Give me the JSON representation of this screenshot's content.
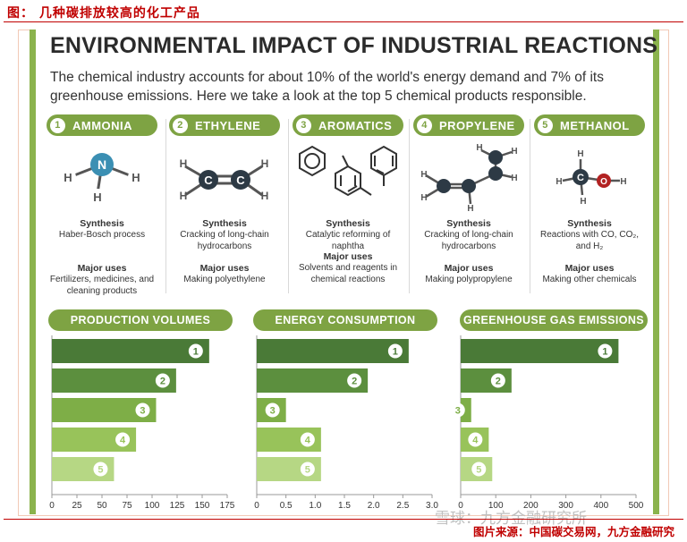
{
  "figure_caption": "图： 几种碳排放较高的化工产品",
  "source": "图片来源：中国碳交易网，九方金融研究",
  "watermark": "雪球：九方金融研究所",
  "infographic": {
    "title": "ENVIRONMENTAL IMPACT OF INDUSTRIAL REACTIONS",
    "intro": "The chemical industry accounts for about 10% of the world's energy demand and 7% of its greenhouse emissions. Here we take a look at the top 5 chemical products responsible.",
    "synthesis_heading": "Synthesis",
    "uses_heading": "Major uses",
    "products": [
      {
        "num": "1",
        "name": "AMMONIA",
        "synthesis": "Haber-Bosch process",
        "uses": "Fertilizers, medicines, and cleaning products"
      },
      {
        "num": "2",
        "name": "ETHYLENE",
        "synthesis": "Cracking of long-chain hydrocarbons",
        "uses": "Making polyethylene"
      },
      {
        "num": "3",
        "name": "AROMATICS",
        "synthesis": "Catalytic reforming of naphtha",
        "uses": "Solvents and reagents in chemical reactions"
      },
      {
        "num": "4",
        "name": "PROPYLENE",
        "synthesis": "Cracking of long-chain hydrocarbons",
        "uses": "Making polypropylene"
      },
      {
        "num": "5",
        "name": "METHANOL",
        "synthesis": "Reactions with CO, CO₂, and H₂",
        "uses": "Making other chemicals"
      }
    ],
    "atom_labels": {
      "n": "N",
      "h": "H",
      "c": "C",
      "o": "O"
    },
    "colors": {
      "green": "#7ea343",
      "bar_shades": [
        "#4a7a37",
        "#5c8f3e",
        "#7eae47",
        "#98c35a",
        "#b6d784"
      ],
      "nitrogen": "#3b8fb3",
      "oxygen": "#b22222",
      "carbon": "#2d3a45"
    }
  },
  "chart_data": [
    {
      "type": "bar",
      "orientation": "horizontal",
      "title": "PRODUCTION VOLUMES",
      "categories": [
        "1",
        "2",
        "3",
        "4",
        "5"
      ],
      "values": [
        157,
        124,
        104,
        84,
        62
      ],
      "xlim": [
        0,
        175
      ],
      "xticks": [
        0,
        25,
        50,
        75,
        100,
        125,
        150,
        175
      ],
      "xtick_labels": [
        "0",
        "25",
        "50",
        "75",
        "100",
        "125",
        "150",
        "175"
      ],
      "grid": false
    },
    {
      "type": "bar",
      "orientation": "horizontal",
      "title": "ENERGY CONSUMPTION",
      "categories": [
        "1",
        "2",
        "3",
        "4",
        "5"
      ],
      "values": [
        2.6,
        1.9,
        0.5,
        1.1,
        1.1
      ],
      "xlim": [
        0,
        3.0
      ],
      "xticks": [
        0,
        0.5,
        1.0,
        1.5,
        2.0,
        2.5,
        3.0
      ],
      "xtick_labels": [
        "0",
        "0.5",
        "1.0",
        "1.5",
        "2.0",
        "2.5",
        "3.0"
      ],
      "grid": false
    },
    {
      "type": "bar",
      "orientation": "horizontal",
      "title": "GREENHOUSE GAS EMISSIONS",
      "categories": [
        "1",
        "2",
        "3",
        "4",
        "5"
      ],
      "values": [
        450,
        145,
        30,
        80,
        90
      ],
      "xlim": [
        0,
        500
      ],
      "xticks": [
        0,
        100,
        200,
        300,
        400,
        500
      ],
      "xtick_labels": [
        "0",
        "100",
        "200",
        "300",
        "400",
        "500"
      ],
      "grid": false
    }
  ]
}
